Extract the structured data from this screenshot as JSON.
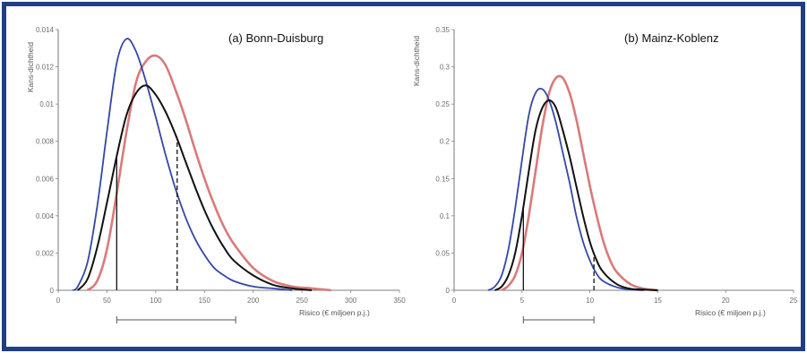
{
  "colors": {
    "frame": "#1f3e85",
    "red": "#d97a7a",
    "blue": "#3447a8",
    "black": "#111111"
  },
  "chart_data": [
    {
      "type": "line",
      "title": "(a) Bonn-Duisburg",
      "xlabel": "Risico (€ miljoen p.j.)",
      "ylabel": "Kans-dichtheid",
      "xlim": [
        0,
        350
      ],
      "ylim": [
        0,
        0.014
      ],
      "xticks": [
        "0",
        "50",
        "100",
        "150",
        "200",
        "250",
        "300",
        "350"
      ],
      "yticks": [
        "0",
        "0.002",
        "0.004",
        "0.006",
        "0.008",
        "0.01",
        "0.012",
        "0.014"
      ],
      "series": [
        {
          "color": "blue",
          "x": [
            15,
            20,
            30,
            40,
            50,
            60,
            70,
            80,
            90,
            100,
            110,
            120,
            130,
            140,
            150,
            160,
            170,
            180,
            200,
            220,
            240
          ],
          "y": [
            0,
            0.0002,
            0.0015,
            0.0045,
            0.0085,
            0.0122,
            0.0135,
            0.0128,
            0.0112,
            0.0093,
            0.0073,
            0.0055,
            0.004,
            0.0028,
            0.0019,
            0.0012,
            0.0008,
            0.0005,
            0.0002,
            0.0001,
            0
          ]
        },
        {
          "color": "black",
          "x": [
            20,
            30,
            40,
            50,
            60,
            70,
            80,
            90,
            100,
            110,
            120,
            130,
            140,
            150,
            160,
            170,
            180,
            200,
            220,
            240,
            260
          ],
          "y": [
            0,
            0.0006,
            0.0023,
            0.0047,
            0.0072,
            0.0094,
            0.0106,
            0.011,
            0.0105,
            0.0096,
            0.0084,
            0.007,
            0.0056,
            0.0043,
            0.0032,
            0.0023,
            0.0016,
            0.0008,
            0.0003,
            0.0001,
            0
          ]
        },
        {
          "color": "red",
          "x": [
            30,
            40,
            50,
            60,
            70,
            80,
            90,
            100,
            110,
            120,
            130,
            140,
            150,
            160,
            170,
            180,
            200,
            220,
            240,
            260,
            280
          ],
          "y": [
            0,
            0.0005,
            0.0022,
            0.0052,
            0.0085,
            0.0112,
            0.0123,
            0.0126,
            0.0121,
            0.0108,
            0.0093,
            0.0076,
            0.006,
            0.0046,
            0.0034,
            0.0025,
            0.0012,
            0.0005,
            0.0002,
            0.0001,
            0
          ]
        }
      ],
      "vlines": [
        {
          "x": 60,
          "style": "solid"
        },
        {
          "x": 122,
          "style": "dashed"
        }
      ],
      "range_bar": {
        "from": 60,
        "to": 182
      }
    },
    {
      "type": "line",
      "title": "(b) Mainz-Koblenz",
      "xlabel": "Risico (€ miljoen p.j.)",
      "ylabel": "Kans-dichtheid",
      "xlim": [
        0,
        25
      ],
      "ylim": [
        0,
        0.35
      ],
      "xticks": [
        "0",
        "5",
        "10",
        "15",
        "20",
        "25"
      ],
      "yticks": [
        "0",
        "0.05",
        "0.1",
        "0.15",
        "0.2",
        "0.25",
        "0.3",
        "0.35"
      ],
      "series": [
        {
          "color": "blue",
          "x": [
            2.5,
            3,
            3.5,
            4,
            4.5,
            5,
            5.5,
            6,
            6.5,
            7,
            7.5,
            8,
            8.5,
            9,
            9.5,
            10,
            10.5,
            11,
            12,
            13,
            14
          ],
          "y": [
            0,
            0.005,
            0.02,
            0.055,
            0.11,
            0.175,
            0.235,
            0.265,
            0.27,
            0.255,
            0.225,
            0.185,
            0.145,
            0.1,
            0.065,
            0.04,
            0.022,
            0.012,
            0.004,
            0.001,
            0
          ]
        },
        {
          "color": "black",
          "x": [
            3,
            3.5,
            4,
            4.5,
            5,
            5.5,
            6,
            6.5,
            7,
            7.5,
            8,
            8.5,
            9,
            9.5,
            10,
            10.5,
            11,
            12,
            13,
            14,
            15
          ],
          "y": [
            0,
            0.005,
            0.02,
            0.05,
            0.1,
            0.16,
            0.215,
            0.245,
            0.255,
            0.245,
            0.215,
            0.18,
            0.14,
            0.1,
            0.065,
            0.04,
            0.024,
            0.008,
            0.002,
            0.001,
            0
          ]
        },
        {
          "color": "red",
          "x": [
            3.5,
            4,
            4.5,
            5,
            5.5,
            6,
            6.5,
            7,
            7.5,
            8,
            8.5,
            9,
            9.5,
            10,
            10.5,
            11,
            11.5,
            12,
            13,
            14,
            15
          ],
          "y": [
            0,
            0.006,
            0.02,
            0.05,
            0.1,
            0.16,
            0.22,
            0.265,
            0.285,
            0.285,
            0.265,
            0.23,
            0.185,
            0.14,
            0.1,
            0.065,
            0.04,
            0.024,
            0.008,
            0.002,
            0
          ]
        }
      ],
      "vlines": [
        {
          "x": 5.1,
          "style": "solid"
        },
        {
          "x": 10.3,
          "style": "dashed"
        }
      ],
      "range_bar": {
        "from": 5.1,
        "to": 10.3
      }
    }
  ]
}
